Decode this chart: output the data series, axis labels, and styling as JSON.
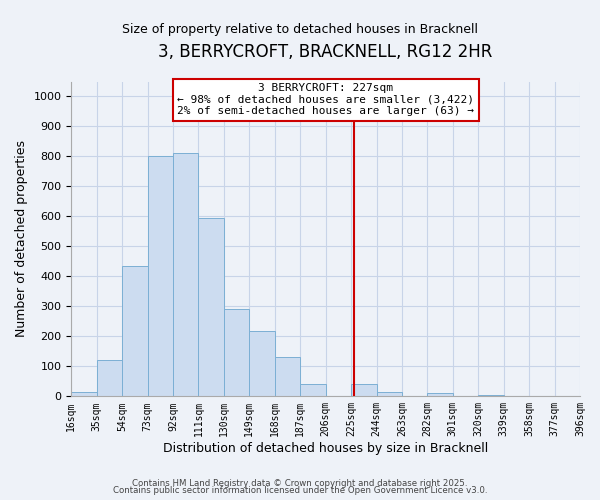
{
  "title": "3, BERRYCROFT, BRACKNELL, RG12 2HR",
  "subtitle": "Size of property relative to detached houses in Bracknell",
  "xlabel": "Distribution of detached houses by size in Bracknell",
  "ylabel": "Number of detached properties",
  "bar_edges": [
    16,
    35,
    54,
    73,
    92,
    111,
    130,
    149,
    168,
    187,
    206,
    225,
    244,
    263,
    282,
    301,
    320,
    339,
    358,
    377,
    396
  ],
  "bar_heights": [
    15,
    120,
    435,
    800,
    810,
    595,
    291,
    217,
    130,
    42,
    0,
    40,
    15,
    0,
    10,
    0,
    5,
    0,
    0,
    0
  ],
  "bar_color": "#ccdcf0",
  "bar_edgecolor": "#7bafd4",
  "vline_x": 227,
  "vline_color": "#cc0000",
  "annotation_line1": "3 BERRYCROFT: 227sqm",
  "annotation_line2": "← 98% of detached houses are smaller (3,422)",
  "annotation_line3": "2% of semi-detached houses are larger (63) →",
  "ylim": [
    0,
    1050
  ],
  "yticks": [
    0,
    100,
    200,
    300,
    400,
    500,
    600,
    700,
    800,
    900,
    1000
  ],
  "grid_color": "#c8d4e8",
  "background_color": "#eef2f8",
  "footer_line1": "Contains HM Land Registry data © Crown copyright and database right 2025.",
  "footer_line2": "Contains public sector information licensed under the Open Government Licence v3.0.",
  "title_fontsize": 12,
  "subtitle_fontsize": 9,
  "tick_labels": [
    "16sqm",
    "35sqm",
    "54sqm",
    "73sqm",
    "92sqm",
    "111sqm",
    "130sqm",
    "149sqm",
    "168sqm",
    "187sqm",
    "206sqm",
    "225sqm",
    "244sqm",
    "263sqm",
    "282sqm",
    "301sqm",
    "320sqm",
    "339sqm",
    "358sqm",
    "377sqm",
    "396sqm"
  ]
}
